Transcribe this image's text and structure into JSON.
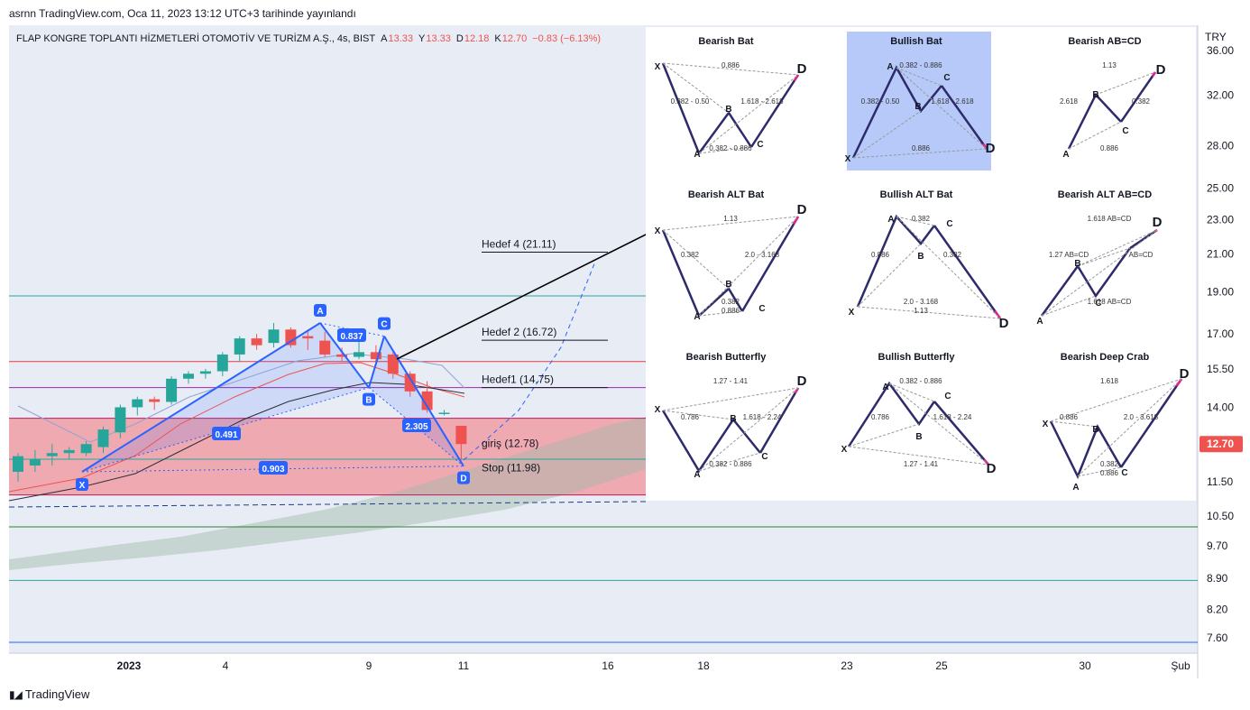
{
  "header": {
    "published": "asrnn TradingView.com, Oca 11, 2023 13:12 UTC+3 tarihinde yayınlandı"
  },
  "symbol": {
    "name": "FLAP KONGRE TOPLANTI HİZMETLERİ OTOMOTİV VE TURİZM A.Ş., 4s, BIST",
    "open_label": "A",
    "open": "13.33",
    "high_label": "Y",
    "high": "13.33",
    "low_label": "D",
    "low": "12.18",
    "close_label": "K",
    "close": "12.70",
    "change": "−0.83 (−6.13%)"
  },
  "colors": {
    "background": "#ffffff",
    "plot_bg": "#e8edf5",
    "up": "#26a69a",
    "down": "#ef5350",
    "pattern": "#2962ff",
    "zone": "#f28b94",
    "last_price": "#ef5350"
  },
  "price_axis": {
    "currency": "TRY",
    "ticks": [
      "36.00",
      "32.00",
      "28.00",
      "25.00",
      "23.00",
      "21.00",
      "19.00",
      "17.00",
      "15.50",
      "14.00",
      "12.70",
      "11.50",
      "10.50",
      "9.70",
      "8.90",
      "8.20",
      "7.60"
    ],
    "last_price": "12.70"
  },
  "time_axis": {
    "ticks": [
      "2023",
      "4",
      "9",
      "11",
      "16",
      "18",
      "23",
      "25",
      "30",
      "Şub"
    ]
  },
  "harmonic_pattern": {
    "points": [
      "X",
      "A",
      "B",
      "C",
      "D"
    ],
    "ratios": [
      "0.837",
      "0.491",
      "2.305",
      "0.903"
    ]
  },
  "levels": {
    "targets": [
      "Hedef 4 (21.11)",
      "Hedef 2 (16.72)",
      "Hedef1 (14.75)"
    ],
    "entry": "giriş (12.78)",
    "stop": "Stop (11.98)"
  },
  "reference_cards": [
    {
      "title": "Bearish Bat",
      "labels": [
        "X",
        "A",
        "B",
        "C",
        "D"
      ],
      "ratios": [
        "0.886",
        "0.382 - 0.50",
        "1.618 - 2.618",
        "0.382 - 0.886"
      ]
    },
    {
      "title": "Bullish Bat",
      "labels": [
        "X",
        "A",
        "B",
        "C",
        "D"
      ],
      "ratios": [
        "0.382 - 0.886",
        "0.382 - 0.50",
        "1.618 - 2.618",
        "0.886"
      ]
    },
    {
      "title": "Bearish AB=CD",
      "labels": [
        "A",
        "B",
        "C",
        "D"
      ],
      "ratios": [
        "1.13",
        "2.618",
        "0.382",
        "0.886"
      ]
    },
    {
      "title": "Bearish ALT Bat",
      "labels": [
        "X",
        "A",
        "B",
        "C",
        "D"
      ],
      "ratios": [
        "1.13",
        "0.382",
        "2.0 - 3.168",
        "0.382",
        "0.886"
      ]
    },
    {
      "title": "Bullish ALT Bat",
      "labels": [
        "X",
        "A",
        "B",
        "C",
        "D"
      ],
      "ratios": [
        "0.382",
        "0.886",
        "0.382",
        "2.0 - 3.168",
        "1.13"
      ]
    },
    {
      "title": "Bearish ALT AB=CD",
      "labels": [
        "A",
        "B",
        "C",
        "D"
      ],
      "ratios": [
        "1.618 AB=CD",
        "1.27 AB=CD",
        "AB=CD",
        "1.618 AB=CD"
      ]
    },
    {
      "title": "Bearish Butterfly",
      "labels": [
        "X",
        "A",
        "B",
        "C",
        "D"
      ],
      "ratios": [
        "1.27 - 1.41",
        "0.786",
        "1.618 - 2.24",
        "0.382 - 0.886"
      ]
    },
    {
      "title": "Bullish Butterfly",
      "labels": [
        "X",
        "A",
        "B",
        "C",
        "D"
      ],
      "ratios": [
        "0.382 - 0.886",
        "0.786",
        "1.618 - 2.24",
        "1.27 - 1.41"
      ]
    },
    {
      "title": "Bearish Deep Crab",
      "labels": [
        "X",
        "A",
        "B",
        "C",
        "D"
      ],
      "ratios": [
        "1.618",
        "0.886",
        "2.0 - 3.618",
        "0.382",
        "0.886"
      ]
    }
  ],
  "footer": {
    "brand": "TradingView"
  },
  "chart_data": {
    "type": "candlestick",
    "timeframe": "4s",
    "log_scale": true,
    "ylim": [
      7.3,
      38.5
    ],
    "x_ticks": [
      "2023",
      "4",
      "9",
      "11",
      "16",
      "18",
      "23",
      "25",
      "30",
      "Şub"
    ],
    "candles_ohlc": [
      [
        11.8,
        12.4,
        11.5,
        12.3
      ],
      [
        12.0,
        12.5,
        11.8,
        12.2
      ],
      [
        12.3,
        12.7,
        12.0,
        12.4
      ],
      [
        12.4,
        12.6,
        12.2,
        12.5
      ],
      [
        12.4,
        12.8,
        12.3,
        12.7
      ],
      [
        12.6,
        13.3,
        12.4,
        13.2
      ],
      [
        13.1,
        14.1,
        12.9,
        14.0
      ],
      [
        14.0,
        14.4,
        13.7,
        14.3
      ],
      [
        14.3,
        14.4,
        13.9,
        14.2
      ],
      [
        14.2,
        15.2,
        14.1,
        15.1
      ],
      [
        15.1,
        15.4,
        14.9,
        15.3
      ],
      [
        15.3,
        15.5,
        15.1,
        15.4
      ],
      [
        15.4,
        16.2,
        15.2,
        16.1
      ],
      [
        16.1,
        16.9,
        15.8,
        16.8
      ],
      [
        16.8,
        17.0,
        16.3,
        16.5
      ],
      [
        16.6,
        17.5,
        16.4,
        17.2
      ],
      [
        17.2,
        17.3,
        16.4,
        16.5
      ],
      [
        16.9,
        17.2,
        16.3,
        16.8
      ],
      [
        16.7,
        17.1,
        16.0,
        16.1
      ],
      [
        16.1,
        16.4,
        15.8,
        16.0
      ],
      [
        16.0,
        16.7,
        15.9,
        16.2
      ],
      [
        16.2,
        16.5,
        15.8,
        15.9
      ],
      [
        16.1,
        16.2,
        15.1,
        15.3
      ],
      [
        15.3,
        15.4,
        14.4,
        14.6
      ],
      [
        14.6,
        15.0,
        13.8,
        13.9
      ],
      [
        13.8,
        13.9,
        13.7,
        13.8
      ],
      [
        13.33,
        13.33,
        12.18,
        12.7
      ]
    ],
    "harmonic_points": [
      {
        "label": "X",
        "value": 11.8
      },
      {
        "label": "A",
        "value": 17.5
      },
      {
        "label": "B",
        "value": 14.75
      },
      {
        "label": "C",
        "value": 16.9
      },
      {
        "label": "D",
        "value": 11.98
      }
    ],
    "harmonic_ratios": {
      "XAB": "0.491",
      "ABC": "0.837",
      "BCD": "2.305",
      "XAD": "0.903"
    },
    "levels": [
      {
        "label": "Hedef 4 (21.11)",
        "value": 21.11
      },
      {
        "label": "Hedef 2 (16.72)",
        "value": 16.72
      },
      {
        "label": "Hedef1 (14.75)",
        "value": 14.75
      },
      {
        "label": "giriş (12.78)",
        "value": 12.78
      },
      {
        "label": "Stop (11.98)",
        "value": 11.98
      }
    ],
    "horizontal_lines": [
      18.8,
      15.8,
      14.75,
      13.6,
      12.2,
      11.1,
      10.2,
      8.85,
      6.9
    ],
    "last_price": 12.7
  }
}
